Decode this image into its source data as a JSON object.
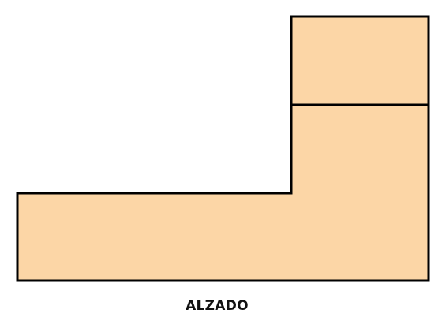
{
  "view": {
    "label": "ALZADO"
  },
  "colors": {
    "fill": "#FCD6A6",
    "stroke": "#000000",
    "background": "#FFFFFF"
  }
}
